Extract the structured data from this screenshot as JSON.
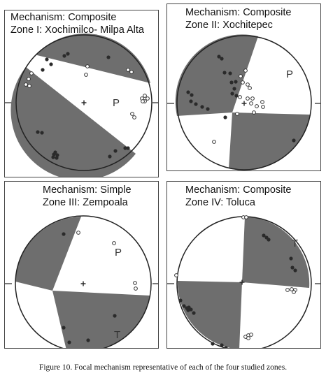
{
  "figure": {
    "caption": "Figure 10. Focal mechanism representative of each of the four studied zones.",
    "colors": {
      "quadrant_fill": "#6e6e6e",
      "outline": "#222222",
      "dot": "#2a2a2a",
      "open_circle_stroke": "#333333"
    },
    "panels": [
      {
        "mechanism": "Mechanism: Composite",
        "zone": "Zone I: Xochimilco- Milpa Alta",
        "axis_labels": [
          {
            "text": "P"
          }
        ],
        "center_marker": "+"
      },
      {
        "mechanism": "Mechanism: Composite",
        "zone": "Zone II: Xochitepec",
        "axis_labels": [
          {
            "text": "P"
          }
        ],
        "center_marker": "+"
      },
      {
        "mechanism": "Mechanism: Simple",
        "zone": "Zone III: Zempoala",
        "axis_labels": [
          {
            "text": "P"
          },
          {
            "text": "T"
          }
        ],
        "center_marker": "+"
      },
      {
        "mechanism": "Mechanism: Composite",
        "zone": "Zone IV: Toluca",
        "axis_labels": [
          {
            "text": "T"
          }
        ],
        "center_marker": "+"
      }
    ]
  }
}
